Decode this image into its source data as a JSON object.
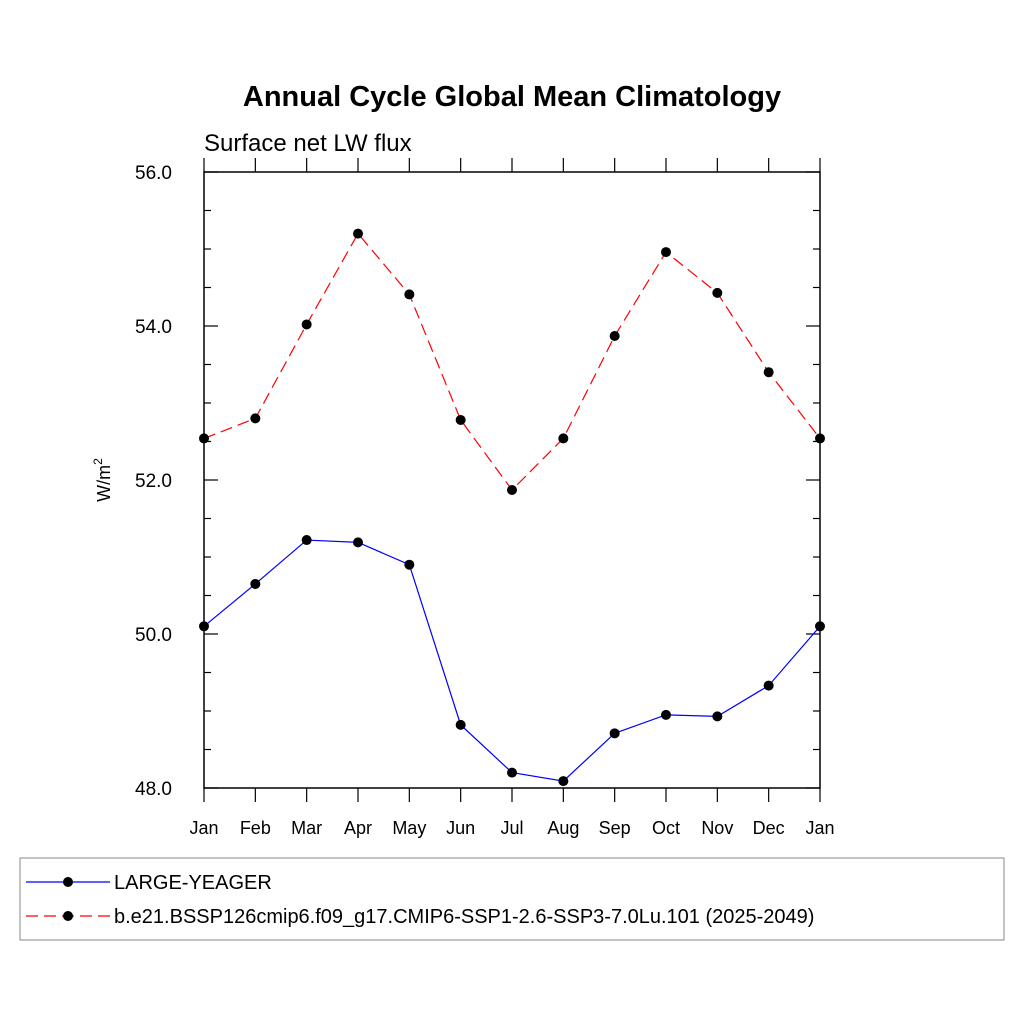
{
  "chart_data": {
    "type": "line",
    "title": "Annual Cycle Global Mean Climatology",
    "subtitle": "Surface net LW flux",
    "ylabel": "W/m",
    "ylabel_sup": "2",
    "xlabel": "",
    "categories": [
      "Jan",
      "Feb",
      "Mar",
      "Apr",
      "May",
      "Jun",
      "Jul",
      "Aug",
      "Sep",
      "Oct",
      "Nov",
      "Dec",
      "Jan"
    ],
    "ylim": [
      48.0,
      56.0
    ],
    "yticks": [
      "48.0",
      "50.0",
      "52.0",
      "54.0",
      "56.0"
    ],
    "grid": false,
    "legend_position": "bottom",
    "series": [
      {
        "name": "LARGE-YEAGER",
        "color": "#0000ff",
        "style": "solid",
        "marker": "filled-circle",
        "values": [
          50.1,
          50.65,
          51.22,
          51.19,
          50.9,
          48.82,
          48.2,
          48.09,
          48.71,
          48.95,
          48.93,
          49.33,
          50.1
        ]
      },
      {
        "name": "b.e21.BSSP126cmip6.f09_g17.CMIP6-SSP1-2.6-SSP3-7.0Lu.101 (2025-2049)",
        "color": "#ff0000",
        "style": "dashed",
        "marker": "filled-circle",
        "values": [
          52.54,
          52.8,
          54.02,
          55.2,
          54.41,
          52.78,
          51.87,
          52.54,
          53.87,
          54.96,
          54.43,
          53.4,
          52.54
        ]
      }
    ]
  }
}
